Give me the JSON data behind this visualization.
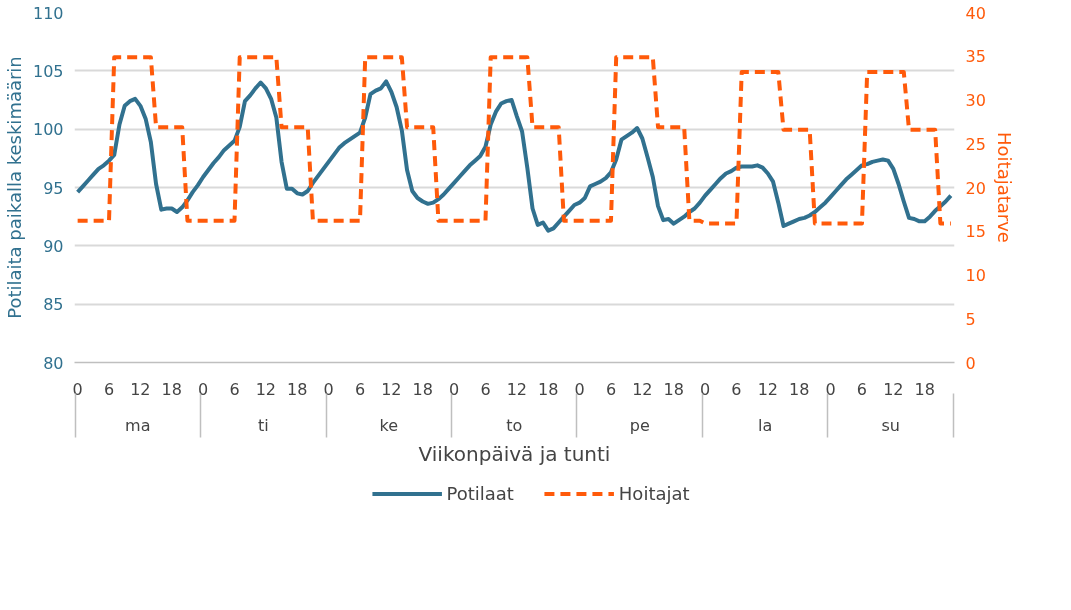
{
  "chart_data": {
    "type": "line",
    "xlabel": "Viikonpäivä ja tunti",
    "ylabel": "Potilaita paikalla keskimäärin",
    "y2label": "Hoitajatarve",
    "annotations": [
      "ma",
      "ti",
      "ke",
      "to",
      "pe",
      "la",
      "su"
    ],
    "categories": [
      "0",
      null,
      null,
      null,
      null,
      null,
      "6",
      null,
      null,
      null,
      null,
      null,
      "12",
      null,
      null,
      null,
      null,
      null,
      "18",
      null,
      null,
      null,
      null,
      null,
      "0",
      null,
      null,
      null,
      null,
      null,
      "6",
      null,
      null,
      null,
      null,
      null,
      "12",
      null,
      null,
      null,
      null,
      null,
      "18",
      null,
      null,
      null,
      null,
      null,
      "0",
      null,
      null,
      null,
      null,
      null,
      "6",
      null,
      null,
      null,
      null,
      null,
      "12",
      null,
      null,
      null,
      null,
      null,
      "18",
      null,
      null,
      null,
      null,
      null,
      "0",
      null,
      null,
      null,
      null,
      null,
      "6",
      null,
      null,
      null,
      null,
      null,
      "12",
      null,
      null,
      null,
      null,
      null,
      "18",
      null,
      null,
      null,
      null,
      null,
      "0",
      null,
      null,
      null,
      null,
      null,
      "6",
      null,
      null,
      null,
      null,
      null,
      "12",
      null,
      null,
      null,
      null,
      null,
      "18",
      null,
      null,
      null,
      null,
      null,
      "0",
      null,
      null,
      null,
      null,
      null,
      "6",
      null,
      null,
      null,
      null,
      null,
      "12",
      null,
      null,
      null,
      null,
      null,
      "18",
      null,
      null,
      null,
      null,
      null,
      "0",
      null,
      null,
      null,
      null,
      null,
      "6",
      null,
      null,
      null,
      null,
      null,
      "12",
      null,
      null,
      null,
      null,
      null,
      "18",
      null,
      null,
      null,
      null,
      null
    ],
    "ylim": [
      80,
      110
    ],
    "yticks": [
      80,
      85,
      90,
      95,
      100,
      105,
      110
    ],
    "y2lim": [
      0,
      40
    ],
    "y2ticks": [
      0,
      5,
      10,
      15,
      20,
      25,
      30,
      35,
      40
    ],
    "grid": "y",
    "legend": "bottom",
    "series": [
      {
        "name": "Potilaat",
        "color": "#31718f",
        "line_style": "solid",
        "values": [
          94.6,
          95.1,
          95.6,
          96.1,
          96.6,
          96.9,
          97.3,
          97.8,
          100.4,
          102.0,
          102.4,
          102.6,
          102.0,
          100.9,
          98.9,
          95.3,
          93.1,
          93.2,
          93.2,
          92.9,
          93.3,
          93.9,
          94.6,
          95.2,
          95.9,
          96.5,
          97.1,
          97.6,
          98.2,
          98.6,
          99.0,
          100.2,
          102.4,
          102.9,
          103.5,
          104.0,
          103.5,
          102.6,
          101.0,
          97.2,
          94.9,
          94.9,
          94.5,
          94.4,
          94.7,
          95.4,
          96.0,
          96.6,
          97.2,
          97.8,
          98.4,
          98.8,
          99.1,
          99.4,
          99.7,
          101.0,
          103.0,
          103.3,
          103.5,
          104.1,
          103.2,
          101.9,
          99.9,
          96.5,
          94.7,
          94.1,
          93.8,
          93.6,
          93.7,
          94.0,
          94.4,
          94.9,
          95.4,
          95.9,
          96.4,
          96.9,
          97.3,
          97.7,
          98.5,
          100.4,
          101.5,
          102.2,
          102.4,
          102.5,
          101.1,
          99.8,
          96.7,
          93.2,
          91.8,
          92.0,
          91.3,
          91.5,
          92.0,
          92.5,
          93.0,
          93.5,
          93.7,
          94.1,
          95.1,
          95.3,
          95.5,
          95.8,
          96.3,
          97.4,
          99.1,
          99.4,
          99.7,
          100.1,
          99.2,
          97.6,
          95.9,
          93.4,
          92.2,
          92.3,
          91.9,
          92.2,
          92.5,
          92.9,
          93.2,
          93.7,
          94.3,
          94.8,
          95.3,
          95.8,
          96.2,
          96.4,
          96.7,
          96.8,
          96.8,
          96.8,
          96.9,
          96.7,
          96.2,
          95.5,
          93.7,
          91.7,
          91.9,
          92.1,
          92.3,
          92.4,
          92.6,
          92.9,
          93.3,
          93.7,
          94.2,
          94.7,
          95.2,
          95.7,
          96.1,
          96.5,
          96.9,
          97.0,
          97.2,
          97.3,
          97.4,
          97.3,
          96.6,
          95.3,
          93.8,
          92.4,
          92.3,
          92.1,
          92.1,
          92.5,
          93.0,
          93.4,
          93.8,
          94.3
        ]
      },
      {
        "name": "Hoitajat",
        "color": "#ff5a0a",
        "line_style": "dashed",
        "axis": "y2",
        "values": [
          16.2,
          16.2,
          16.2,
          16.2,
          16.2,
          16.2,
          16.2,
          34.9,
          34.9,
          34.9,
          34.9,
          34.9,
          34.9,
          34.9,
          34.9,
          26.9,
          26.9,
          26.9,
          26.9,
          26.9,
          26.9,
          16.2,
          16.2,
          16.2,
          16.2,
          16.2,
          16.2,
          16.2,
          16.2,
          16.2,
          16.2,
          34.9,
          34.9,
          34.9,
          34.9,
          34.9,
          34.9,
          34.9,
          34.9,
          26.9,
          26.9,
          26.9,
          26.9,
          26.9,
          26.9,
          16.2,
          16.2,
          16.2,
          16.2,
          16.2,
          16.2,
          16.2,
          16.2,
          16.2,
          16.2,
          34.9,
          34.9,
          34.9,
          34.9,
          34.9,
          34.9,
          34.9,
          34.9,
          26.9,
          26.9,
          26.9,
          26.9,
          26.9,
          26.9,
          16.2,
          16.2,
          16.2,
          16.2,
          16.2,
          16.2,
          16.2,
          16.2,
          16.2,
          16.2,
          34.9,
          34.9,
          34.9,
          34.9,
          34.9,
          34.9,
          34.9,
          34.9,
          26.9,
          26.9,
          26.9,
          26.9,
          26.9,
          26.9,
          16.2,
          16.2,
          16.2,
          16.2,
          16.2,
          16.2,
          16.2,
          16.2,
          16.2,
          16.2,
          34.9,
          34.9,
          34.9,
          34.9,
          34.9,
          34.9,
          34.9,
          34.9,
          26.9,
          26.9,
          26.9,
          26.9,
          26.9,
          26.9,
          16.2,
          16.2,
          16.2,
          15.9,
          15.9,
          15.9,
          15.9,
          15.9,
          15.9,
          15.9,
          33.2,
          33.2,
          33.2,
          33.2,
          33.2,
          33.2,
          33.2,
          33.2,
          26.6,
          26.6,
          26.6,
          26.6,
          26.6,
          26.6,
          15.9,
          15.9,
          15.9,
          15.9,
          15.9,
          15.9,
          15.9,
          15.9,
          15.9,
          15.9,
          33.2,
          33.2,
          33.2,
          33.2,
          33.2,
          33.2,
          33.2,
          33.2,
          26.6,
          26.6,
          26.6,
          26.6,
          26.6,
          26.6,
          15.9,
          15.9,
          15.9
        ]
      }
    ]
  }
}
